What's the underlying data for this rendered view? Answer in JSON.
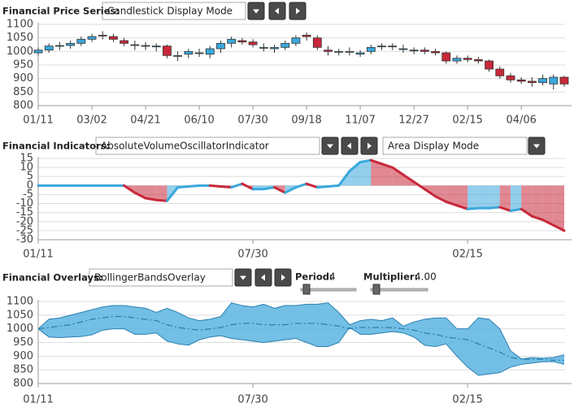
{
  "controls": {
    "price": {
      "label": "Financial Price Series:",
      "mode": "Candlestick Display Mode"
    },
    "indicators": {
      "label": "Financial Indicators:",
      "indicator": "AbsoluteVolumeOscillatorIndicator",
      "mode": "Area Display Mode"
    },
    "overlays": {
      "label": "Financial Overlays:",
      "overlay": "BollingerBandsOverlay",
      "period_label": "Period:",
      "period": "4",
      "multiplier_label": "Multiplier:",
      "multiplier": "4.00"
    }
  },
  "chart_data": [
    {
      "type": "candlestick",
      "categories": [
        "01/11",
        null,
        null,
        null,
        null,
        "03/02",
        null,
        null,
        null,
        null,
        "04/21",
        null,
        null,
        null,
        null,
        "06/10",
        null,
        null,
        null,
        null,
        "07/30",
        null,
        null,
        null,
        null,
        "09/18",
        null,
        null,
        null,
        null,
        "11/07",
        null,
        null,
        null,
        null,
        "12/27",
        null,
        null,
        null,
        null,
        "02/15",
        null,
        null,
        null,
        null,
        "04/06",
        null,
        null,
        null,
        null
      ],
      "open": [
        995,
        1005,
        1020,
        1022,
        1030,
        1045,
        1060,
        1055,
        1040,
        1025,
        1022,
        1020,
        1020,
        985,
        990,
        995,
        990,
        1010,
        1030,
        1040,
        1035,
        1015,
        1010,
        1015,
        1030,
        1060,
        1050,
        1005,
        1000,
        1000,
        990,
        1000,
        1020,
        1020,
        1010,
        1005,
        1005,
        1000,
        995,
        965,
        975,
        970,
        965,
        935,
        910,
        895,
        890,
        885,
        880,
        905
      ],
      "high": [
        1015,
        1030,
        1035,
        1040,
        1055,
        1065,
        1075,
        1065,
        1050,
        1040,
        1035,
        1030,
        1025,
        1000,
        1010,
        1010,
        1020,
        1040,
        1055,
        1050,
        1045,
        1030,
        1025,
        1040,
        1060,
        1070,
        1060,
        1020,
        1010,
        1015,
        1005,
        1025,
        1030,
        1030,
        1025,
        1015,
        1015,
        1010,
        1000,
        985,
        985,
        980,
        970,
        945,
        920,
        905,
        905,
        915,
        915,
        910
      ],
      "low": [
        985,
        995,
        1005,
        1010,
        1020,
        1035,
        1045,
        1035,
        1020,
        1005,
        1005,
        1000,
        975,
        965,
        975,
        980,
        975,
        995,
        1015,
        1025,
        1015,
        1000,
        995,
        1005,
        1020,
        1040,
        1005,
        985,
        985,
        985,
        980,
        990,
        1005,
        1005,
        995,
        990,
        990,
        985,
        955,
        955,
        960,
        955,
        925,
        900,
        885,
        880,
        870,
        875,
        860,
        870
      ],
      "close": [
        1005,
        1020,
        1022,
        1030,
        1045,
        1055,
        1058,
        1045,
        1030,
        1025,
        1022,
        1020,
        985,
        985,
        1000,
        995,
        1010,
        1030,
        1045,
        1035,
        1025,
        1015,
        1015,
        1030,
        1050,
        1055,
        1015,
        1000,
        1000,
        1000,
        995,
        1015,
        1020,
        1020,
        1010,
        1005,
        1000,
        995,
        965,
        975,
        970,
        965,
        935,
        910,
        895,
        890,
        885,
        900,
        905,
        880
      ],
      "up_color": "#3aa8dc",
      "down_color": "#c8283a",
      "ylim": [
        800,
        1100
      ],
      "yticks": [
        800,
        850,
        900,
        950,
        1000,
        1050,
        1100
      ],
      "grid": true
    },
    {
      "type": "area",
      "categories": [
        "01/11",
        null,
        null,
        null,
        null,
        null,
        null,
        null,
        null,
        null,
        null,
        null,
        null,
        null,
        null,
        null,
        null,
        null,
        null,
        null,
        "07/30",
        null,
        null,
        null,
        null,
        null,
        null,
        null,
        null,
        null,
        null,
        null,
        null,
        null,
        null,
        null,
        null,
        null,
        null,
        null,
        "02/15",
        null,
        null,
        null,
        null,
        null,
        null,
        null,
        null,
        null
      ],
      "values": [
        0,
        0,
        0,
        0,
        0,
        0,
        0,
        0,
        0,
        -4,
        -7,
        -8,
        -8.5,
        -1,
        -0.5,
        0,
        0,
        -0.5,
        -1,
        1,
        -2,
        -2,
        -1,
        -4,
        -1,
        1,
        -1,
        -0.5,
        0,
        8,
        13,
        14,
        12,
        10,
        6,
        2,
        -2,
        -6,
        -9,
        -11,
        -13,
        -12.5,
        -12.5,
        -12,
        -14,
        -13,
        -17,
        -19,
        -22,
        -25
      ],
      "up_color": "#3aa8dc",
      "down_color": "#c8283a",
      "ylim": [
        -30,
        15
      ],
      "yticks": [
        -30,
        -25,
        -20,
        -15,
        -10,
        -5,
        0,
        5,
        10,
        15
      ],
      "grid": true
    },
    {
      "type": "bands",
      "categories": [
        "01/11",
        null,
        null,
        null,
        null,
        null,
        null,
        null,
        null,
        null,
        null,
        null,
        null,
        null,
        null,
        null,
        null,
        null,
        null,
        null,
        "07/30",
        null,
        null,
        null,
        null,
        null,
        null,
        null,
        null,
        null,
        null,
        null,
        null,
        null,
        null,
        null,
        null,
        null,
        null,
        null,
        "02/15",
        null,
        null,
        null,
        null,
        null,
        null,
        null,
        null,
        null
      ],
      "upper": [
        1000,
        1035,
        1040,
        1050,
        1060,
        1070,
        1080,
        1085,
        1085,
        1080,
        1075,
        1060,
        1075,
        1060,
        1040,
        1030,
        1035,
        1045,
        1095,
        1085,
        1080,
        1090,
        1075,
        1085,
        1085,
        1090,
        1090,
        1095,
        1060,
        1015,
        1030,
        1035,
        1030,
        1040,
        1010,
        1025,
        1035,
        1040,
        1040,
        1000,
        1000,
        1040,
        1035,
        1000,
        920,
        890,
        895,
        893,
        895,
        905
      ],
      "middle": [
        1000,
        1005,
        1010,
        1015,
        1025,
        1035,
        1040,
        1045,
        1045,
        1040,
        1035,
        1030,
        1015,
        1005,
        1000,
        995,
        1000,
        1005,
        1015,
        1020,
        1020,
        1015,
        1015,
        1015,
        1020,
        1020,
        1020,
        1015,
        1010,
        1000,
        1005,
        1005,
        1005,
        1005,
        1000,
        995,
        985,
        980,
        970,
        965,
        960,
        945,
        930,
        915,
        895,
        890,
        888,
        888,
        885,
        885
      ],
      "lower": [
        1000,
        970,
        968,
        970,
        972,
        978,
        995,
        1000,
        1000,
        980,
        980,
        985,
        955,
        945,
        940,
        960,
        970,
        975,
        965,
        960,
        955,
        950,
        955,
        960,
        965,
        950,
        935,
        935,
        950,
        1005,
        980,
        980,
        985,
        990,
        985,
        970,
        940,
        935,
        945,
        900,
        860,
        830,
        835,
        840,
        860,
        870,
        875,
        880,
        880,
        870
      ],
      "color": "#5ab4e0",
      "line_color": "#2a7fb0",
      "ylim": [
        800,
        1100
      ],
      "yticks": [
        800,
        850,
        900,
        950,
        1000,
        1050,
        1100
      ],
      "grid": true
    }
  ]
}
